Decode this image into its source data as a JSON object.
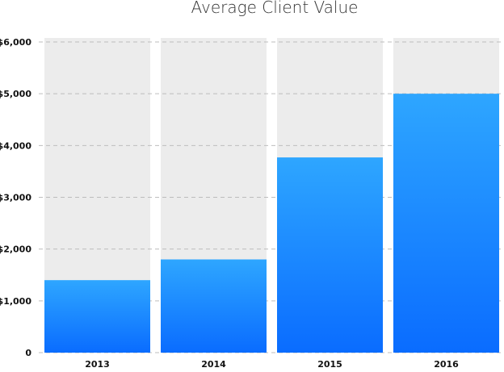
{
  "chart_data": {
    "type": "bar",
    "title": "Average Client Value",
    "xlabel": "",
    "ylabel": "",
    "categories": [
      "2013",
      "2014",
      "2015",
      "2016"
    ],
    "values": [
      1400,
      1800,
      3770,
      5000
    ],
    "ylim": [
      0,
      6000
    ],
    "yticks": [
      0,
      1000,
      2000,
      3000,
      4000,
      5000,
      6000
    ],
    "ytick_labels": [
      "0",
      "$1,000",
      "$2,000",
      "$3,000",
      "$4,000",
      "$5,000",
      "$6,000"
    ],
    "grid": true,
    "legend": "none",
    "colors": {
      "bar_top": "#2ea6ff",
      "bar_bottom": "#0a6cff",
      "bar_background": "#ececec",
      "grid": "#bdbdbd"
    }
  }
}
